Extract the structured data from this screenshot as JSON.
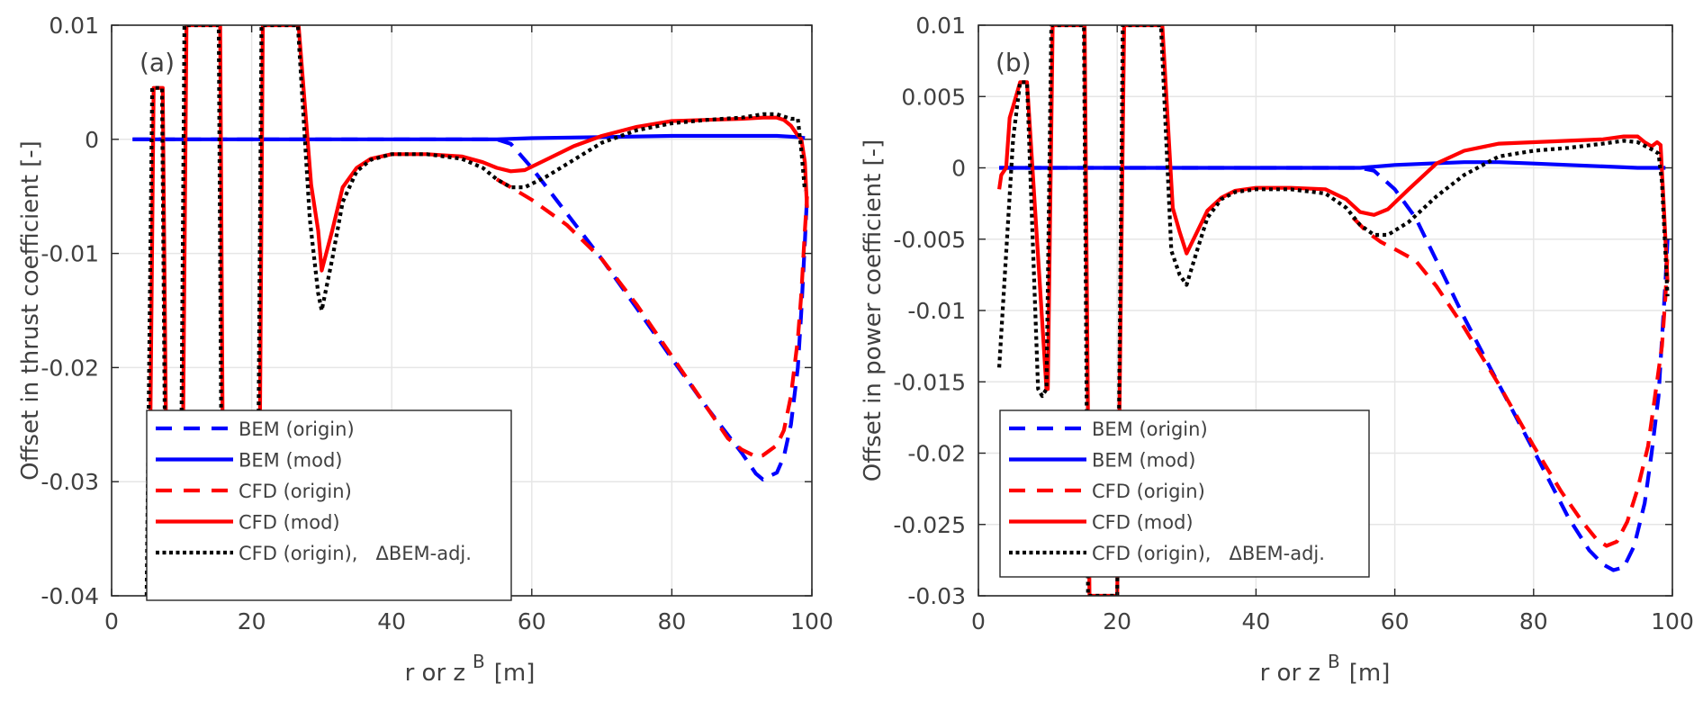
{
  "chart_data": [
    {
      "type": "line",
      "panel_label": "(a)",
      "title": "",
      "xlabel": "r or z",
      "xlabel_superscript": "B",
      "xlabel_unit": "[m]",
      "ylabel": "Offset in thrust coefficient [-]",
      "xlim": [
        0,
        100
      ],
      "ylim": [
        -0.04,
        0.01
      ],
      "xticks": [
        0,
        20,
        40,
        60,
        80,
        100
      ],
      "xtick_labels": [
        "0",
        "20",
        "40",
        "60",
        "80",
        "100"
      ],
      "yticks": [
        0.01,
        0,
        -0.01,
        -0.02,
        -0.03,
        -0.04
      ],
      "ytick_labels": [
        "0.01",
        "0",
        "-0.01",
        "-0.02",
        "-0.03",
        "-0.04"
      ],
      "grid": true,
      "legend_position": "bottom-left",
      "series": [
        {
          "name": "BEM (origin)",
          "color": "#0000ff",
          "style": "dashed",
          "x": [
            3,
            20,
            40,
            55,
            57,
            60,
            65,
            70,
            75,
            80,
            85,
            90,
            92,
            93,
            95,
            96,
            97,
            98,
            98.5,
            99,
            99.3
          ],
          "y": [
            0,
            0,
            0,
            0,
            -0.0004,
            -0.0025,
            -0.0065,
            -0.0105,
            -0.0148,
            -0.0192,
            -0.0235,
            -0.0275,
            -0.0293,
            -0.0298,
            -0.0292,
            -0.0278,
            -0.025,
            -0.02,
            -0.015,
            -0.009,
            -0.005
          ]
        },
        {
          "name": "BEM (mod)",
          "color": "#0000ff",
          "style": "solid",
          "x": [
            3,
            20,
            40,
            55,
            60,
            70,
            80,
            90,
            95,
            98,
            99
          ],
          "y": [
            0,
            0,
            0,
            0,
            0.0001,
            0.0002,
            0.0003,
            0.0003,
            0.0003,
            0.0002,
            0.0001
          ]
        },
        {
          "name": "CFD (origin)",
          "color": "#ff0000",
          "style": "dashed",
          "x": [
            55,
            57,
            60,
            65,
            70,
            75,
            80,
            85,
            88,
            90,
            92,
            93,
            95,
            96,
            97,
            98,
            98.5,
            99,
            99.3
          ],
          "y": [
            -0.0035,
            -0.0042,
            -0.0053,
            -0.0075,
            -0.0105,
            -0.0145,
            -0.019,
            -0.0235,
            -0.0262,
            -0.0272,
            -0.0278,
            -0.0277,
            -0.0268,
            -0.0255,
            -0.0225,
            -0.0175,
            -0.0135,
            -0.008,
            -0.005
          ]
        },
        {
          "name": "CFD (mod)",
          "color": "#ff0000",
          "style": "solid",
          "x": [
            5.3,
            6,
            6.5,
            7.3,
            8,
            9.5,
            10,
            10.7,
            11,
            13,
            15.5,
            16,
            16.5,
            20,
            21,
            21.6,
            22.2,
            24,
            26,
            26.7,
            28.5,
            29.5,
            30,
            31.5,
            33,
            35,
            37,
            40,
            45,
            50,
            53,
            55,
            57,
            59,
            62,
            66,
            70,
            75,
            80,
            85,
            90,
            93,
            95,
            96,
            97,
            97.8,
            98.5,
            99,
            99.3
          ],
          "y": [
            -0.04,
            0.0045,
            0.0045,
            0.0045,
            -0.04,
            -0.04,
            -0.04,
            0.01,
            0.01,
            0.01,
            0.01,
            -0.04,
            -0.04,
            -0.04,
            -0.04,
            0.01,
            0.01,
            0.01,
            0.01,
            0.01,
            -0.004,
            -0.008,
            -0.0115,
            -0.008,
            -0.0042,
            -0.0025,
            -0.0017,
            -0.0013,
            -0.0013,
            -0.0015,
            -0.002,
            -0.0025,
            -0.0028,
            -0.0027,
            -0.0018,
            -0.0006,
            0.0003,
            0.0011,
            0.0016,
            0.0017,
            0.0018,
            0.0019,
            0.0019,
            0.0017,
            0.0012,
            0.0005,
            0,
            -0.002,
            -0.006
          ]
        },
        {
          "name": "CFD (origin),   ΔBEM-adj.",
          "color": "#000000",
          "style": "dotted",
          "x": [
            5,
            5.8,
            6.5,
            7.2,
            7.8,
            9.8,
            10.4,
            11,
            13,
            15.3,
            15.8,
            16.5,
            20,
            20.8,
            21.4,
            22,
            24,
            26,
            26.6,
            28.3,
            29.5,
            30,
            31.5,
            33,
            35,
            37,
            40,
            45,
            50,
            53,
            55,
            57,
            59,
            62,
            66,
            70,
            75,
            80,
            85,
            90,
            93,
            95,
            96,
            97,
            98,
            98.5,
            99
          ],
          "y": [
            -0.04,
            0.0045,
            0.0045,
            0.0045,
            -0.04,
            -0.04,
            0.01,
            0.01,
            0.01,
            0.01,
            -0.04,
            -0.04,
            -0.04,
            -0.04,
            0.01,
            0.01,
            0.01,
            0.01,
            0.01,
            -0.007,
            -0.0135,
            -0.015,
            -0.0105,
            -0.0055,
            -0.0028,
            -0.0018,
            -0.0013,
            -0.0013,
            -0.0017,
            -0.0025,
            -0.0035,
            -0.0042,
            -0.0042,
            -0.0033,
            -0.0018,
            -0.0003,
            0.0008,
            0.0014,
            0.0017,
            0.0019,
            0.0022,
            0.0022,
            0.002,
            0.0018,
            0.0018,
            -0.001,
            -0.0045
          ]
        }
      ],
      "legend": [
        "BEM (origin)",
        "BEM (mod)",
        "CFD (origin)",
        "CFD (mod)",
        "CFD (origin),   ΔBEM-adj."
      ]
    },
    {
      "type": "line",
      "panel_label": "(b)",
      "title": "",
      "xlabel": "r or z",
      "xlabel_superscript": "B",
      "xlabel_unit": "[m]",
      "ylabel": "Offset in power coefficient [-]",
      "xlim": [
        0,
        100
      ],
      "ylim": [
        -0.03,
        0.01
      ],
      "xticks": [
        0,
        20,
        40,
        60,
        80,
        100
      ],
      "xtick_labels": [
        "0",
        "20",
        "40",
        "60",
        "80",
        "100"
      ],
      "yticks": [
        0.01,
        0.005,
        0,
        -0.005,
        -0.01,
        -0.015,
        -0.02,
        -0.025,
        -0.03
      ],
      "ytick_labels": [
        "0.01",
        "0.005",
        "0",
        "-0.005",
        "-0.01",
        "-0.015",
        "-0.02",
        "-0.025",
        "-0.03"
      ],
      "grid": true,
      "legend_position": "bottom-left",
      "series": [
        {
          "name": "BEM (origin)",
          "color": "#0000ff",
          "style": "dashed",
          "x": [
            3,
            20,
            40,
            55,
            57,
            60,
            63,
            66,
            70,
            75,
            80,
            85,
            88,
            90,
            91.5,
            93,
            94.5,
            96,
            97,
            98,
            98.5,
            99,
            99.3
          ],
          "y": [
            0,
            0,
            0,
            0,
            -0.0002,
            -0.0015,
            -0.0035,
            -0.0065,
            -0.0105,
            -0.0152,
            -0.0198,
            -0.0245,
            -0.0268,
            -0.0278,
            -0.0282,
            -0.028,
            -0.0265,
            -0.0235,
            -0.02,
            -0.016,
            -0.012,
            -0.008,
            -0.005
          ]
        },
        {
          "name": "BEM (mod)",
          "color": "#0000ff",
          "style": "solid",
          "x": [
            3,
            20,
            40,
            55,
            60,
            65,
            70,
            75,
            80,
            85,
            90,
            95,
            99
          ],
          "y": [
            0,
            0,
            0,
            0,
            0.0002,
            0.0003,
            0.0004,
            0.0004,
            0.0003,
            0.0002,
            0.0001,
            0,
            0
          ]
        },
        {
          "name": "CFD (origin)",
          "color": "#ff0000",
          "style": "dashed",
          "x": [
            54,
            56,
            58,
            60,
            63,
            66,
            70,
            75,
            80,
            84,
            87,
            89,
            90.5,
            92,
            93.5,
            95,
            96.5,
            97.5,
            98.5,
            99,
            99.3
          ],
          "y": [
            -0.0035,
            -0.0045,
            -0.0052,
            -0.0057,
            -0.0065,
            -0.0083,
            -0.0112,
            -0.0152,
            -0.0195,
            -0.0227,
            -0.0248,
            -0.026,
            -0.0265,
            -0.0262,
            -0.0248,
            -0.0225,
            -0.0195,
            -0.016,
            -0.0125,
            -0.009,
            -0.006
          ]
        },
        {
          "name": "CFD (mod)",
          "color": "#ff0000",
          "style": "solid",
          "x": [
            3,
            3.3,
            4,
            4.5,
            5,
            6,
            7,
            9.2,
            9.8,
            10,
            10.7,
            13,
            15.3,
            16,
            20,
            21,
            23,
            25.5,
            26.5,
            28,
            29,
            30,
            31.5,
            33,
            35,
            37,
            40,
            45,
            50,
            53,
            55,
            57,
            59,
            62,
            66,
            70,
            75,
            80,
            85,
            90,
            93,
            95,
            96,
            97,
            97.8,
            98.3,
            98.8,
            99.3
          ],
          "y": [
            -0.0015,
            -0.0005,
            0,
            0.0035,
            0.0043,
            0.006,
            0.006,
            -0.0108,
            -0.0155,
            -0.0155,
            0.01,
            0.01,
            0.01,
            -0.03,
            -0.03,
            0.01,
            0.01,
            0.01,
            0.01,
            -0.0028,
            -0.0045,
            -0.006,
            -0.0045,
            -0.003,
            -0.0021,
            -0.0016,
            -0.0014,
            -0.0014,
            -0.0015,
            -0.0022,
            -0.0031,
            -0.0033,
            -0.0029,
            -0.0015,
            0.0003,
            0.0012,
            0.0017,
            0.0018,
            0.0019,
            0.002,
            0.0022,
            0.0022,
            0.0018,
            0.0015,
            0.0018,
            0.0016,
            -0.003,
            -0.008
          ]
        },
        {
          "name": "CFD (origin),   ΔBEM-adj.",
          "color": "#000000",
          "style": "dotted",
          "x": [
            3,
            4,
            5,
            6,
            7,
            8.6,
            9.2,
            9.8,
            10.5,
            13,
            15.2,
            15.8,
            20,
            20.8,
            23,
            25.5,
            26.3,
            27.8,
            29,
            30,
            31.5,
            33,
            35,
            37,
            40,
            45,
            50,
            53,
            55,
            57,
            59,
            62,
            66,
            70,
            75,
            80,
            85,
            90,
            93,
            95,
            97,
            98,
            98.5,
            99,
            99.3
          ],
          "y": [
            -0.014,
            -0.006,
            0.002,
            0.006,
            0.006,
            -0.0155,
            -0.016,
            -0.0155,
            0.01,
            0.01,
            0.01,
            -0.03,
            -0.03,
            0.01,
            0.01,
            0.01,
            0.01,
            -0.0058,
            -0.0075,
            -0.0082,
            -0.0058,
            -0.0035,
            -0.0022,
            -0.0017,
            -0.0015,
            -0.0015,
            -0.0018,
            -0.0028,
            -0.004,
            -0.0047,
            -0.0047,
            -0.0038,
            -0.002,
            -0.0005,
            0.0008,
            0.0012,
            0.0014,
            0.0017,
            0.0019,
            0.0018,
            0.0013,
            0.001,
            -0.001,
            -0.006,
            -0.009
          ]
        }
      ],
      "legend": [
        "BEM (origin)",
        "BEM (mod)",
        "CFD (origin)",
        "CFD (mod)",
        "CFD (origin),   ΔBEM-adj."
      ]
    }
  ]
}
